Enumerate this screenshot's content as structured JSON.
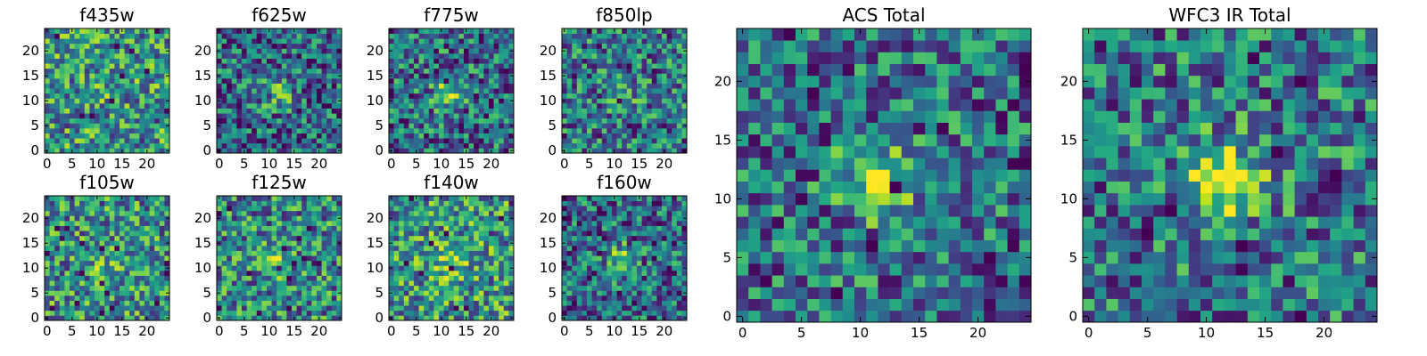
{
  "figure": {
    "colormap": "viridis",
    "grid": false
  },
  "chart_data": [
    {
      "type": "heatmap",
      "title": "f435w",
      "xlim": [
        0,
        24
      ],
      "ylim": [
        0,
        24
      ],
      "xticks": [
        0,
        5,
        10,
        15,
        20
      ],
      "yticks": [
        0,
        5,
        10,
        15,
        20
      ],
      "n": 25,
      "seed": 11,
      "peak": 0.05,
      "bias": 0.18
    },
    {
      "type": "heatmap",
      "title": "f625w",
      "xlim": [
        0,
        24
      ],
      "ylim": [
        0,
        24
      ],
      "xticks": [
        0,
        5,
        10,
        15,
        20
      ],
      "yticks": [
        0,
        5,
        10,
        15,
        20
      ],
      "n": 25,
      "seed": 23,
      "peak": 0.35,
      "bias": 0.0
    },
    {
      "type": "heatmap",
      "title": "f775w",
      "xlim": [
        0,
        24
      ],
      "ylim": [
        0,
        24
      ],
      "xticks": [
        0,
        5,
        10,
        15,
        20
      ],
      "yticks": [
        0,
        5,
        10,
        15,
        20
      ],
      "n": 25,
      "seed": 37,
      "peak": 0.35,
      "bias": 0.02
    },
    {
      "type": "heatmap",
      "title": "f850lp",
      "xlim": [
        0,
        24
      ],
      "ylim": [
        0,
        24
      ],
      "xticks": [
        0,
        5,
        10,
        15,
        20
      ],
      "yticks": [
        0,
        5,
        10,
        15,
        20
      ],
      "n": 25,
      "seed": 41,
      "peak": 0.15,
      "bias": 0.05
    },
    {
      "type": "heatmap",
      "title": "f105w",
      "xlim": [
        0,
        24
      ],
      "ylim": [
        0,
        24
      ],
      "xticks": [
        0,
        5,
        10,
        15,
        20
      ],
      "yticks": [
        0,
        5,
        10,
        15,
        20
      ],
      "n": 25,
      "seed": 53,
      "peak": 0.15,
      "bias": 0.15
    },
    {
      "type": "heatmap",
      "title": "f125w",
      "xlim": [
        0,
        24
      ],
      "ylim": [
        0,
        24
      ],
      "xticks": [
        0,
        5,
        10,
        15,
        20
      ],
      "yticks": [
        0,
        5,
        10,
        15,
        20
      ],
      "n": 25,
      "seed": 67,
      "peak": 0.25,
      "bias": 0.12
    },
    {
      "type": "heatmap",
      "title": "f140w",
      "xlim": [
        0,
        24
      ],
      "ylim": [
        0,
        24
      ],
      "xticks": [
        0,
        5,
        10,
        15,
        20
      ],
      "yticks": [
        0,
        5,
        10,
        15,
        20
      ],
      "n": 25,
      "seed": 79,
      "peak": 0.25,
      "bias": 0.18
    },
    {
      "type": "heatmap",
      "title": "f160w",
      "xlim": [
        0,
        24
      ],
      "ylim": [
        0,
        24
      ],
      "xticks": [
        0,
        5,
        10,
        15,
        20
      ],
      "yticks": [
        0,
        5,
        10,
        15,
        20
      ],
      "n": 25,
      "seed": 83,
      "peak": 0.4,
      "bias": 0.0
    },
    {
      "type": "heatmap",
      "title": "ACS Total",
      "xlim": [
        0,
        24
      ],
      "ylim": [
        0,
        24
      ],
      "xticks": [
        0,
        5,
        10,
        15,
        20
      ],
      "yticks": [
        0,
        5,
        10,
        15,
        20
      ],
      "n": 25,
      "seed": 97,
      "peak": 0.55,
      "bias": 0.02
    },
    {
      "type": "heatmap",
      "title": "WFC3 IR Total",
      "xlim": [
        0,
        24
      ],
      "ylim": [
        0,
        24
      ],
      "xticks": [
        0,
        5,
        10,
        15,
        20
      ],
      "yticks": [
        0,
        5,
        10,
        15,
        20
      ],
      "n": 25,
      "seed": 101,
      "peak": 0.6,
      "bias": 0.05
    }
  ]
}
